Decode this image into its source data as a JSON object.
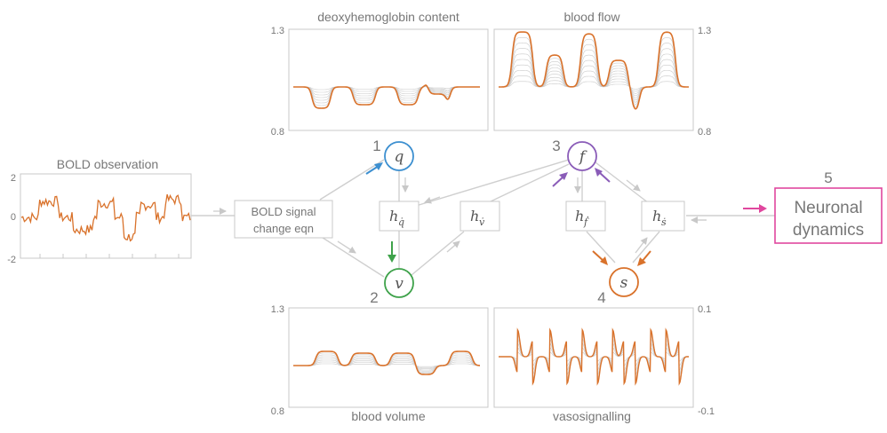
{
  "colors": {
    "orange": "#d9722b",
    "blue": "#3c8fd0",
    "green": "#3ea24a",
    "purple": "#8a5cb8",
    "pink": "#e0479e",
    "grey_text": "#777777",
    "grey_lines": "#bbbbbb"
  },
  "panels": {
    "bold": {
      "title": "BOLD observation",
      "ticks": [
        "2",
        "0",
        "-2"
      ]
    },
    "deoxy": {
      "title": "deoxyhemoglobin content",
      "ymax": "1.3",
      "ymin": "0.8"
    },
    "flow": {
      "title": "blood flow",
      "ymax": "1.3",
      "ymin": "0.8"
    },
    "volume": {
      "title": "blood volume",
      "ymax": "1.3",
      "ymin": "0.8"
    },
    "vaso": {
      "title": "vasosignalling",
      "ymax": "0.1",
      "ymin": "-0.1"
    }
  },
  "nodes": {
    "bold_eqn": [
      "BOLD  signal",
      "change eqn"
    ],
    "q": {
      "num": "1",
      "sym": "q"
    },
    "v": {
      "num": "2",
      "sym": "v"
    },
    "f": {
      "num": "3",
      "sym": "f"
    },
    "s": {
      "num": "4",
      "sym": "s"
    },
    "neuronal": {
      "num": "5",
      "lines": [
        "Neuronal",
        "dynamics"
      ]
    },
    "h_q": {
      "base": "h",
      "sub": "q̇"
    },
    "h_v": {
      "base": "h",
      "sub": "v̇"
    },
    "h_f": {
      "base": "h",
      "sub": "ḟ"
    },
    "h_s": {
      "base": "h",
      "sub": "ṡ"
    }
  }
}
